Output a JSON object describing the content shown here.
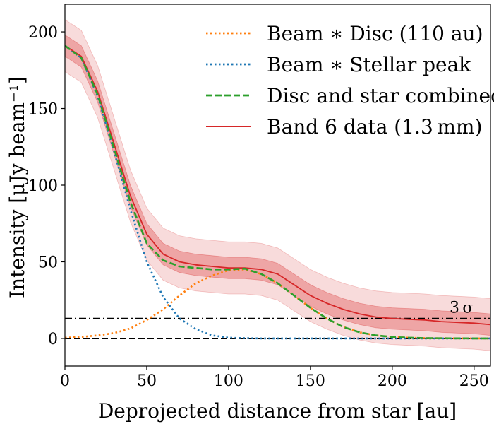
{
  "chart_data": {
    "type": "line",
    "title": "",
    "xlabel": "Deprojected distance from star [au]",
    "ylabel": "Intensity [μJy beam⁻¹]",
    "xlim": [
      0,
      260
    ],
    "ylim": [
      -18,
      218
    ],
    "xticks": [
      0,
      50,
      100,
      150,
      200,
      250
    ],
    "yticks": [
      0,
      50,
      100,
      150,
      200
    ],
    "x": [
      0,
      10,
      20,
      30,
      40,
      50,
      60,
      70,
      80,
      90,
      100,
      110,
      120,
      130,
      140,
      150,
      160,
      170,
      180,
      190,
      200,
      210,
      220,
      230,
      240,
      250,
      260
    ],
    "series": [
      {
        "name": "Beam ∗ Disc (110 au)",
        "style": "dotted",
        "color": "#ff7f0e",
        "values": [
          0.5,
          1,
          2,
          3.5,
          6.5,
          12,
          19,
          28,
          36,
          41,
          44.5,
          45,
          42,
          36,
          28,
          20,
          13,
          7.5,
          4,
          2,
          1,
          0.5,
          0.2,
          0.1,
          0.05,
          0.02,
          0
        ]
      },
      {
        "name": "Beam ∗ Stellar peak",
        "style": "dotted",
        "color": "#1f77b4",
        "values": [
          191,
          183,
          158,
          122,
          84,
          50,
          27,
          13,
          6,
          2,
          0.5,
          0.2,
          0,
          0,
          0,
          0,
          0,
          0,
          0,
          0,
          0,
          0,
          0,
          0,
          0,
          0,
          0
        ]
      },
      {
        "name": "Disc and star combined",
        "style": "dashed",
        "color": "#2ca02c",
        "values": [
          191,
          183,
          159,
          124,
          89,
          62,
          51,
          47,
          46,
          45,
          45,
          45.5,
          42,
          36,
          28,
          20,
          13,
          7.5,
          4,
          2,
          1,
          0.5,
          0.2,
          0.1,
          0.05,
          0.02,
          0
        ]
      },
      {
        "name": "Band 6 data (1.3 mm)",
        "style": "solid",
        "color": "#d62728",
        "values": [
          191,
          184,
          161,
          127,
          93,
          68,
          55,
          50,
          48,
          47,
          46,
          46,
          45,
          42,
          35,
          28,
          23,
          19,
          16,
          14,
          13,
          12.5,
          12,
          11,
          10.5,
          10,
          9
        ]
      }
    ],
    "uncertainty": {
      "series": "Band 6 data (1.3 mm)",
      "inner": 7,
      "outer": 17
    },
    "reference_lines": [
      {
        "y": 0,
        "style": "dashed",
        "color": "#000000"
      },
      {
        "y": 13,
        "style": "dashdot",
        "color": "#000000",
        "label": "3 σ"
      }
    ],
    "legend": {
      "location": "top-right",
      "entries": [
        "Beam ∗ Disc (110 au)",
        "Beam ∗ Stellar peak",
        "Disc and star combined",
        "Band 6 data (1.3 mm)"
      ]
    }
  }
}
